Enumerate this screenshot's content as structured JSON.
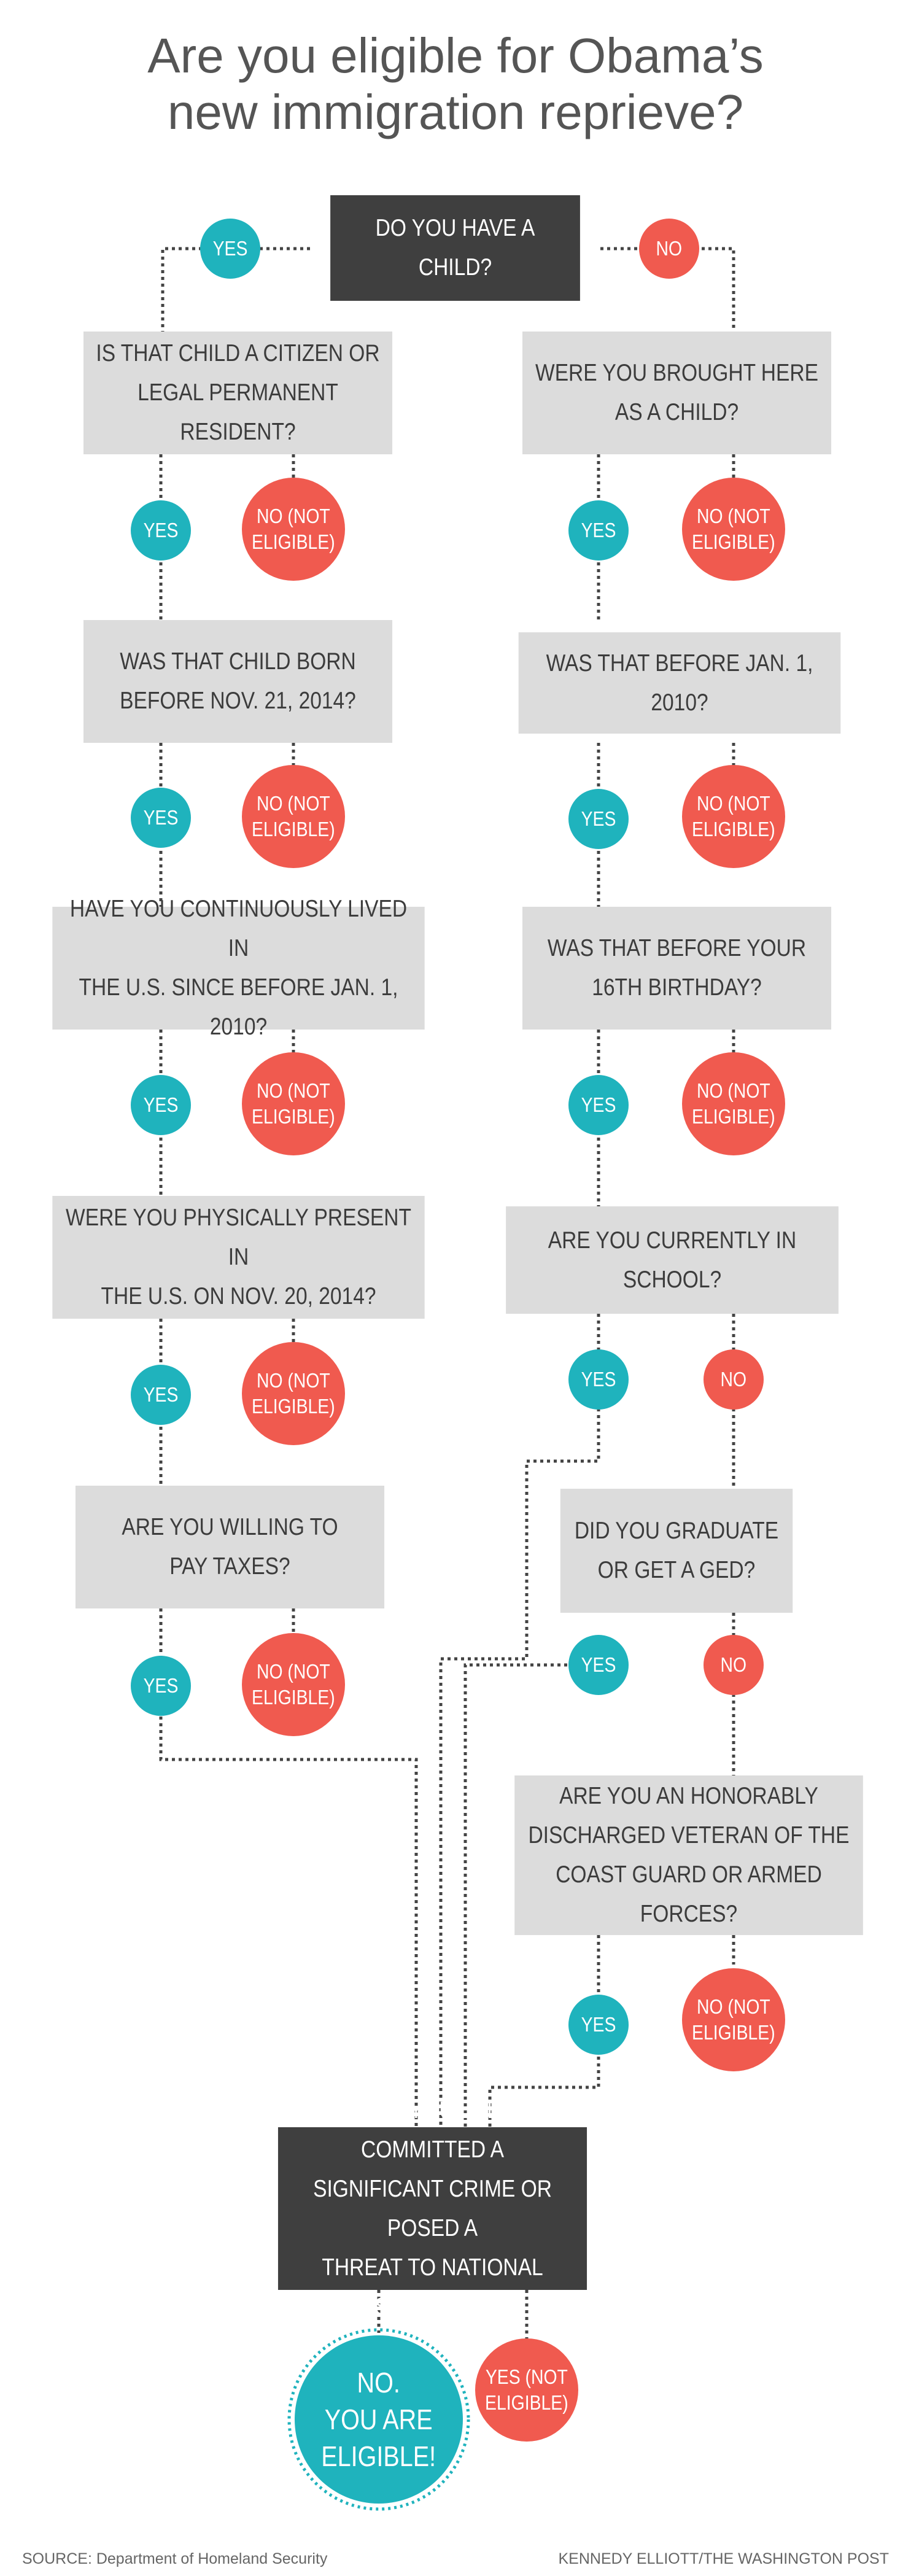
{
  "title": {
    "line1": "Are you eligible for Obama’s",
    "line2": "new immigration reprieve?"
  },
  "nodes": {
    "start": {
      "line1": "DO YOU HAVE A CHILD?"
    },
    "child_citizen": {
      "line1": "IS THAT CHILD A CITIZEN OR",
      "line2": "LEGAL PERMANENT RESIDENT?"
    },
    "child_born": {
      "line1": "WAS THAT CHILD BORN",
      "line2": "BEFORE NOV. 21, 2014?"
    },
    "lived_since": {
      "line1": "HAVE YOU CONTINUOUSLY LIVED IN",
      "line2": "THE U.S. SINCE BEFORE JAN. 1, 2010?"
    },
    "present_nov20": {
      "line1": "WERE YOU PHYSICALLY PRESENT IN",
      "line2": "THE U.S. ON NOV. 20, 2014?"
    },
    "pay_taxes": {
      "line1": "ARE YOU WILLING TO",
      "line2": "PAY TAXES?"
    },
    "brought_child": {
      "line1": "WERE YOU BROUGHT HERE",
      "line2": "AS A CHILD?"
    },
    "before_2010": {
      "line1": "WAS THAT BEFORE JAN. 1, 2010?"
    },
    "before_16": {
      "line1": "WAS THAT BEFORE YOUR",
      "line2": "16TH BIRTHDAY?"
    },
    "in_school": {
      "line1": "ARE YOU CURRENTLY IN SCHOOL?"
    },
    "graduate_ged": {
      "line1": "DID YOU GRADUATE",
      "line2": "OR GET A GED?"
    },
    "veteran": {
      "line1": "ARE YOU AN HONORABLY",
      "line2": "DISCHARGED VETERAN OF THE",
      "line3": "COAST GUARD OR ARMED FORCES?"
    },
    "crime": {
      "line1": "HAVE YOU EVER COMMITTED A",
      "line2": "SIGNIFICANT CRIME OR POSED A",
      "line3": "THREAT TO NATIONAL SECURITY?"
    }
  },
  "answers": {
    "yes": "YES",
    "no": "NO",
    "not_eligible_1": "NO (NOT",
    "not_eligible_2": "ELIGIBLE)",
    "yes_not_eligible_1": "YES (NOT",
    "yes_not_eligible_2": "ELIGIBLE)"
  },
  "result": {
    "line1": "NO.",
    "line2": "YOU ARE",
    "line3": "ELIGIBLE!"
  },
  "footer": {
    "source": "SOURCE: Department of Homeland Security",
    "credit": "KENNEDY ELLIOTT/THE WASHINGTON POST"
  },
  "colors": {
    "yes": "#1fb3bd",
    "no": "#f05a4f",
    "question_box": "#dcdcdc",
    "dark_box": "#3f3f3f"
  }
}
